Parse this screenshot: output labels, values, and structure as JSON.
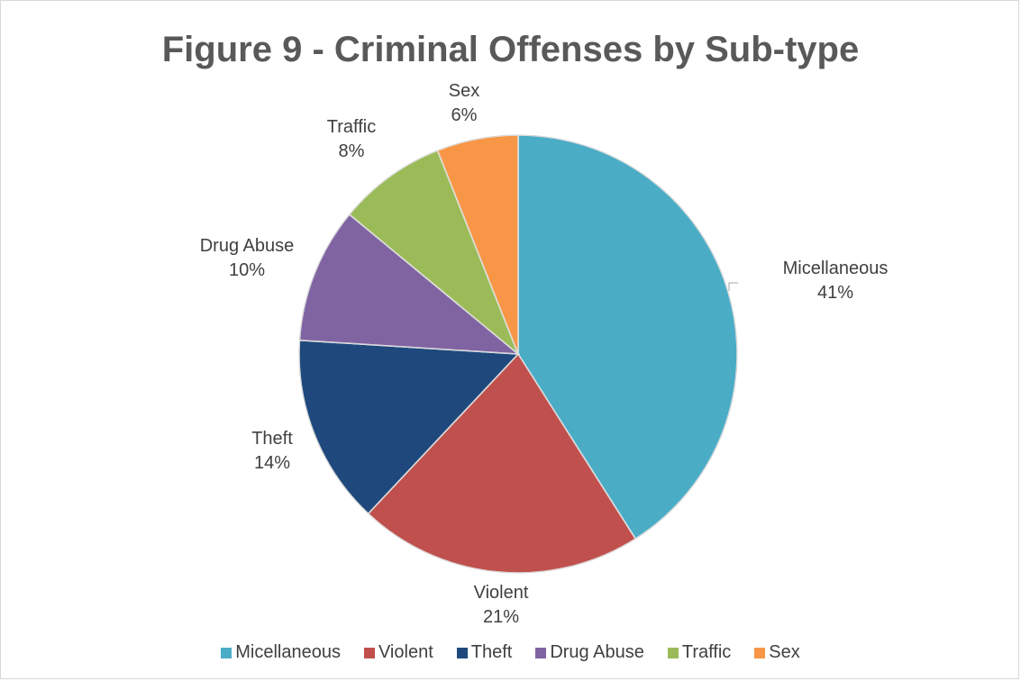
{
  "chart_data": {
    "type": "pie",
    "title": "Figure 9 - Criminal Offenses by Sub-type",
    "categories": [
      "Micellaneous",
      "Violent",
      "Theft",
      "Drug Abuse",
      "Traffic",
      "Sex"
    ],
    "values": [
      41,
      21,
      14,
      10,
      8,
      6
    ],
    "value_labels": [
      "41%",
      "21%",
      "14%",
      "10%",
      "8%",
      "6%"
    ],
    "colors": [
      "#4BACC6",
      "#C0504D",
      "#1F497D",
      "#8064A2",
      "#9BBB59",
      "#F79646"
    ],
    "legend_position": "bottom"
  }
}
